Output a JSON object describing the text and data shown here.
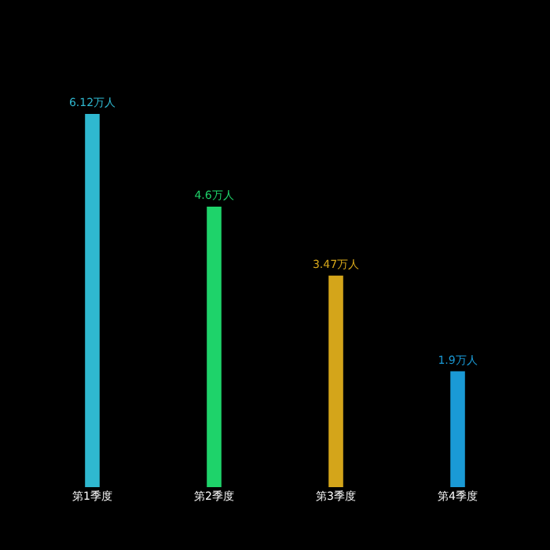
{
  "chart_data": {
    "type": "bar",
    "categories": [
      "第1季度",
      "第2季度",
      "第3季度",
      "第4季度"
    ],
    "values": [
      6.12,
      4.6,
      3.47,
      1.9
    ],
    "value_labels": [
      "6.12万人",
      "4.6万人",
      "3.47万人",
      "1.9万人"
    ],
    "colors": [
      "#2fb8d0",
      "#1ed36a",
      "#d4a51a",
      "#1a9ad6"
    ],
    "grid": false,
    "legend": false
  }
}
